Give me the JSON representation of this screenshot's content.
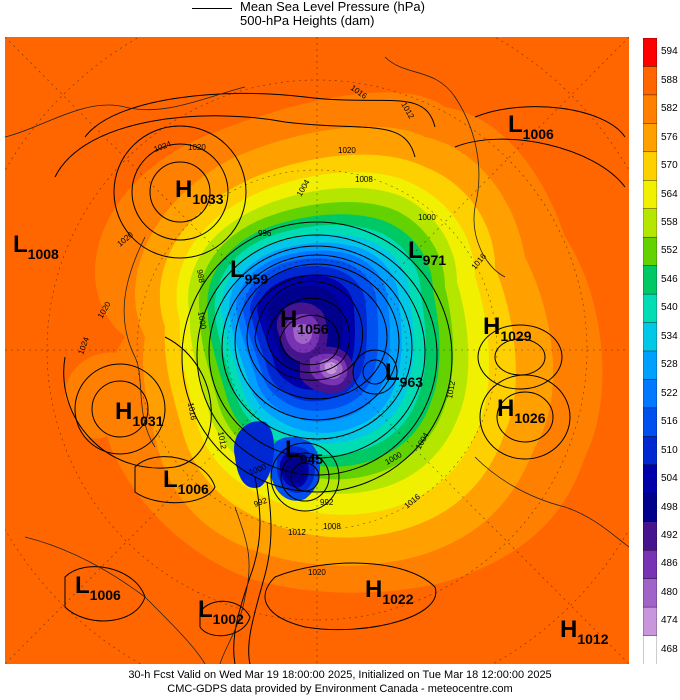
{
  "legend": {
    "line1": "Mean Sea Level Pressure (hPa)",
    "line2": "500-hPa Heights (dam)"
  },
  "colorbar": {
    "labels": [
      "594",
      "588",
      "582",
      "576",
      "570",
      "564",
      "558",
      "552",
      "546",
      "540",
      "534",
      "528",
      "522",
      "516",
      "510",
      "504",
      "498",
      "492",
      "486",
      "480",
      "474",
      "468"
    ],
    "colors": [
      "#ff0000",
      "#ff6600",
      "#ff7f00",
      "#ffa000",
      "#ffd000",
      "#f0f000",
      "#b4e600",
      "#64d200",
      "#00c864",
      "#00dcb4",
      "#00c8e6",
      "#00a0ff",
      "#0078ff",
      "#0050f0",
      "#0028d2",
      "#0000aa",
      "#00008c",
      "#46148c",
      "#7832b4",
      "#a064c8",
      "#c896dc",
      "#ffffff"
    ]
  },
  "systems": [
    {
      "type": "L",
      "value": "1006",
      "name": "low-1006-east"
    },
    {
      "type": "H",
      "value": "1033",
      "name": "high-1033"
    },
    {
      "type": "L",
      "value": "1008",
      "name": "low-1008-west"
    },
    {
      "type": "L",
      "value": "971",
      "name": "low-971"
    },
    {
      "type": "L",
      "value": "959",
      "name": "low-959"
    },
    {
      "type": "H",
      "value": "1056",
      "name": "high-1056"
    },
    {
      "type": "H",
      "value": "1029",
      "name": "high-1029"
    },
    {
      "type": "L",
      "value": "963",
      "name": "low-963"
    },
    {
      "type": "H",
      "value": "1031",
      "name": "high-1031"
    },
    {
      "type": "H",
      "value": "1026",
      "name": "high-1026"
    },
    {
      "type": "L",
      "value": "945",
      "name": "low-945"
    },
    {
      "type": "L",
      "value": "1006",
      "name": "low-1006-center"
    },
    {
      "type": "L",
      "value": "1006",
      "name": "low-1006-southwest"
    },
    {
      "type": "H",
      "value": "1022",
      "name": "high-1022"
    },
    {
      "type": "L",
      "value": "1002",
      "name": "low-1002"
    },
    {
      "type": "H",
      "value": "1012",
      "name": "high-1012"
    }
  ],
  "isobar_labels": [
    "1016",
    "1012",
    "1024",
    "1020",
    "1020",
    "1008",
    "1004",
    "1000",
    "1016",
    "1020",
    "996",
    "988",
    "1000",
    "1020",
    "1024",
    "1016",
    "1012",
    "1004",
    "1000",
    "992",
    "1012",
    "1016",
    "1008",
    "1000",
    "992",
    "1020",
    "1012"
  ],
  "footer": {
    "line1": "30-h Fcst Valid on Wed Mar 19 18:00:00 2025, Initialized on Tue Mar 18 12:00:00 2025",
    "line2": "CMC-GDPS data provided by Environment Canada - meteocentre.com"
  }
}
